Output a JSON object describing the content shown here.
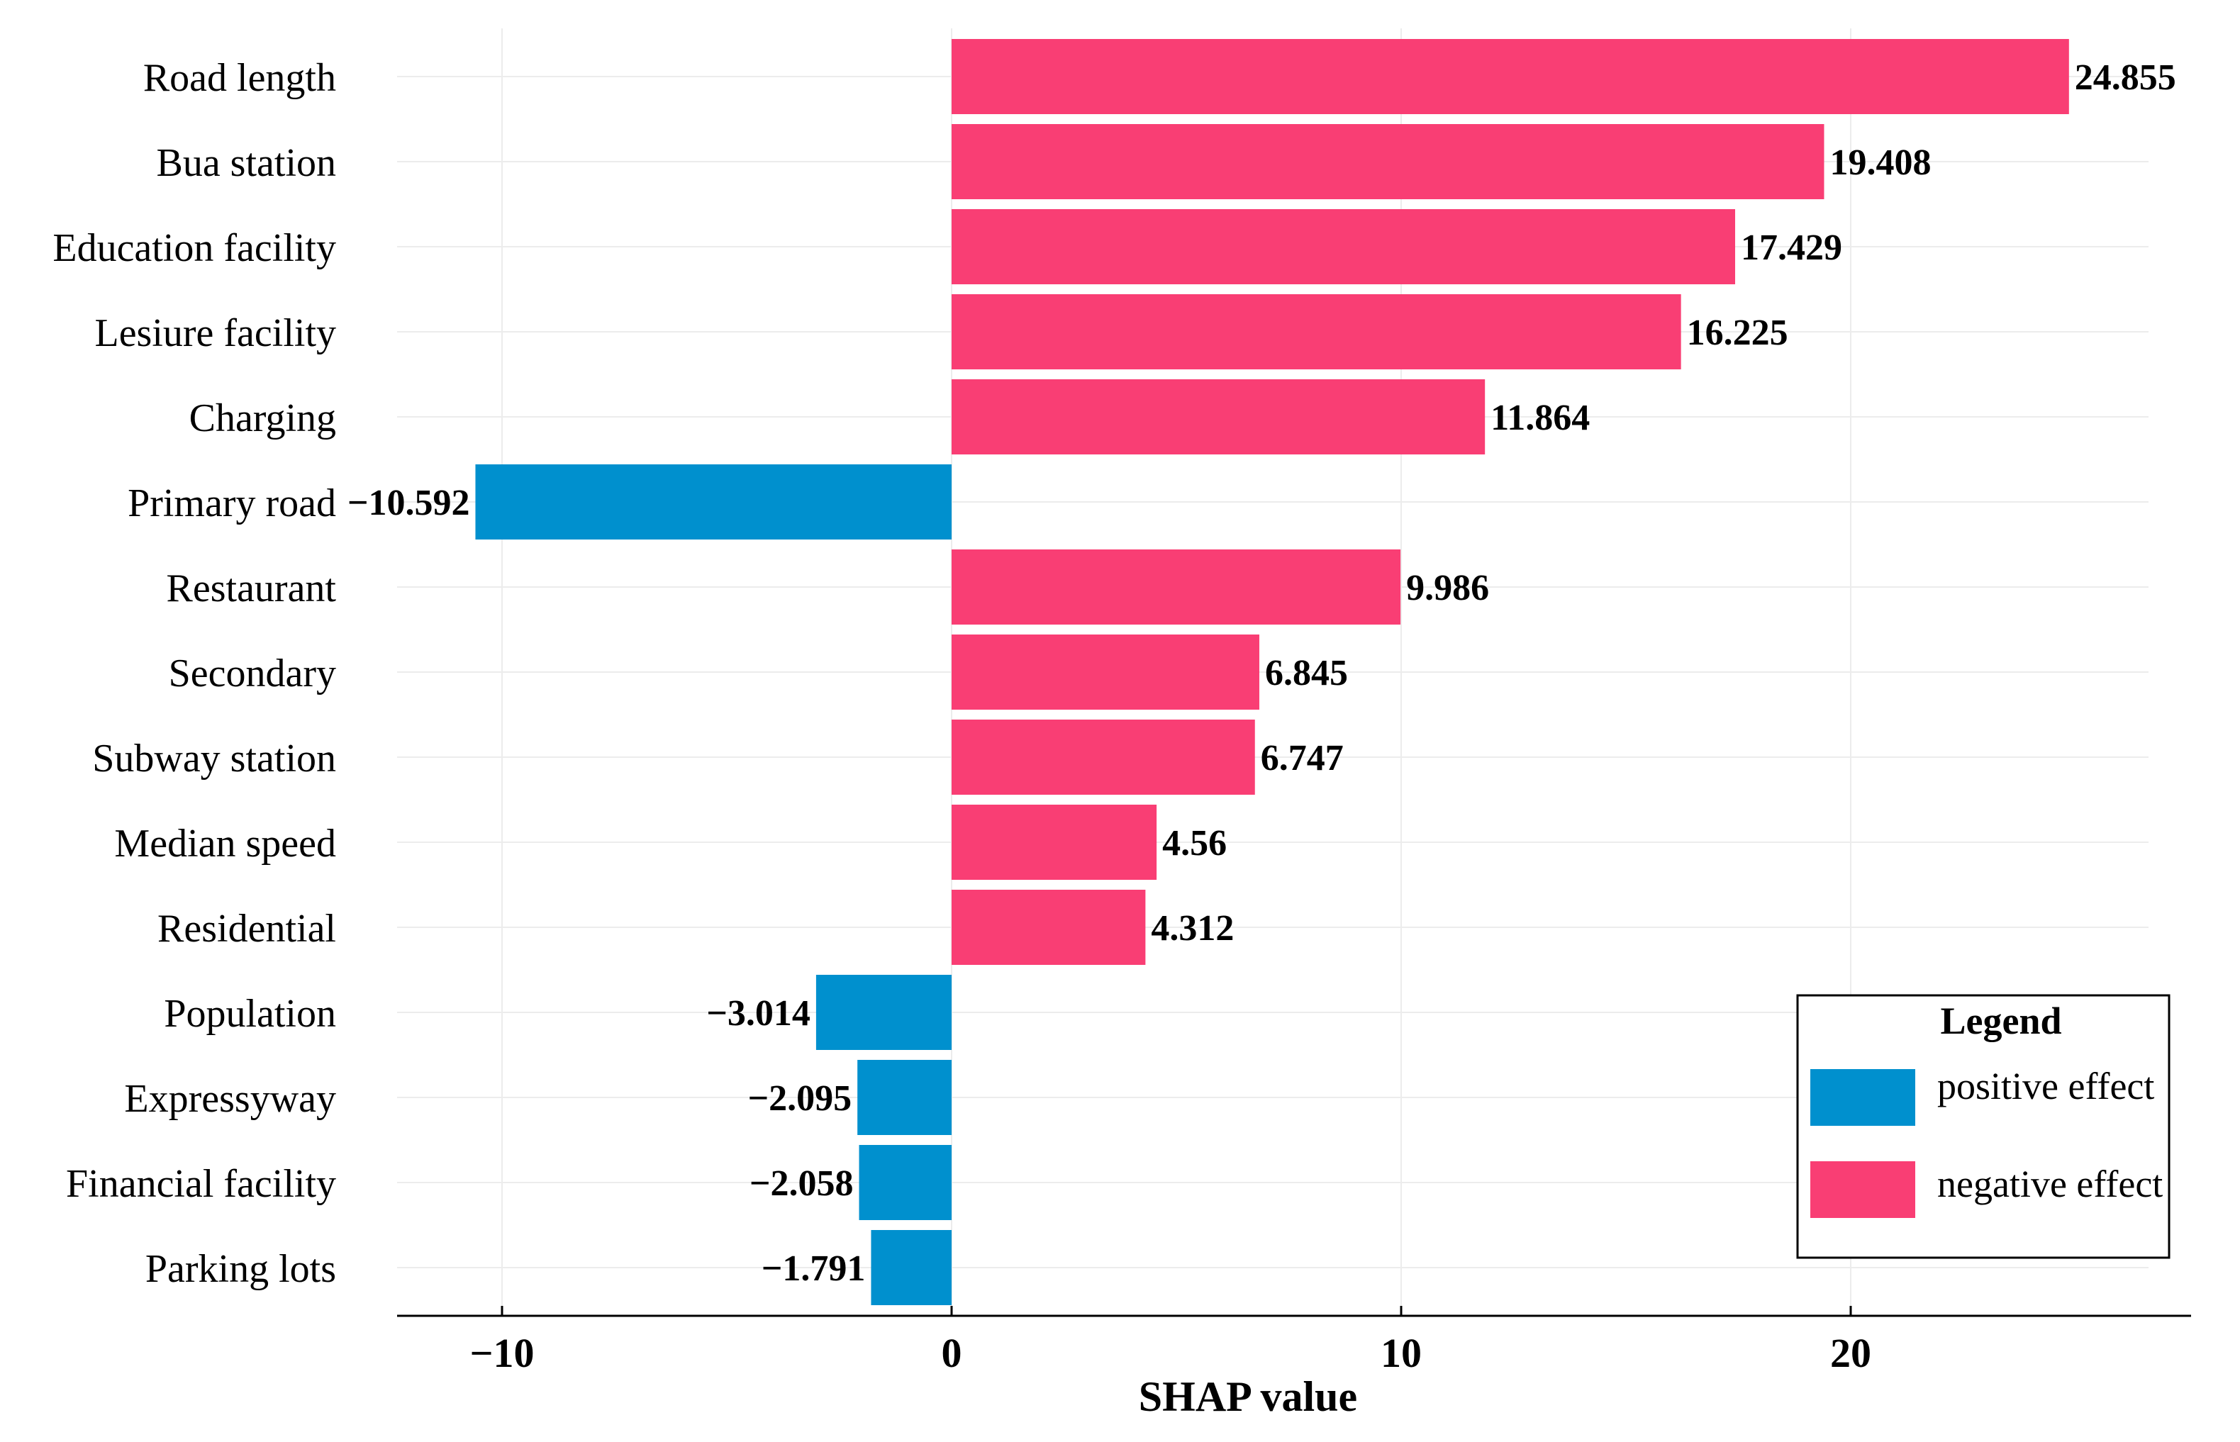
{
  "chart_data": {
    "type": "bar",
    "orientation": "horizontal",
    "title": "",
    "xlabel": "SHAP value",
    "ylabel": "",
    "xlim": [
      -12.3,
      27.5
    ],
    "xticks": [
      -10,
      0,
      10,
      20
    ],
    "xtick_labels": [
      "−10",
      "0",
      "10",
      "20"
    ],
    "grid": true,
    "categories": [
      "Road length",
      "Bua station",
      "Education facility",
      "Lesiure facility",
      "Charging",
      "Primary road",
      "Restaurant",
      "Secondary",
      "Subway station",
      "Median speed",
      "Residential",
      "Population",
      "Expressyway",
      "Financial facility",
      "Parking lots"
    ],
    "values": [
      24.855,
      19.408,
      17.429,
      16.225,
      11.864,
      -10.592,
      9.986,
      6.845,
      6.747,
      4.56,
      4.312,
      -3.014,
      -2.095,
      -2.058,
      -1.791
    ],
    "value_labels": [
      "24.855",
      "19.408",
      "17.429",
      "16.225",
      "11.864",
      "−10.592",
      "9.986",
      "6.845",
      "6.747",
      "4.56",
      "4.312",
      "−3.014",
      "−2.095",
      "−2.058",
      "−1.791"
    ],
    "colors": {
      "positive_effect": "#0090CE",
      "negative_effect": "#F93E74"
    },
    "legend": {
      "title": "Legend",
      "position": "bottom-right",
      "entries": [
        {
          "label": "positive effect",
          "color": "#0090CE"
        },
        {
          "label": "negative effect",
          "color": "#F93E74"
        }
      ]
    }
  }
}
